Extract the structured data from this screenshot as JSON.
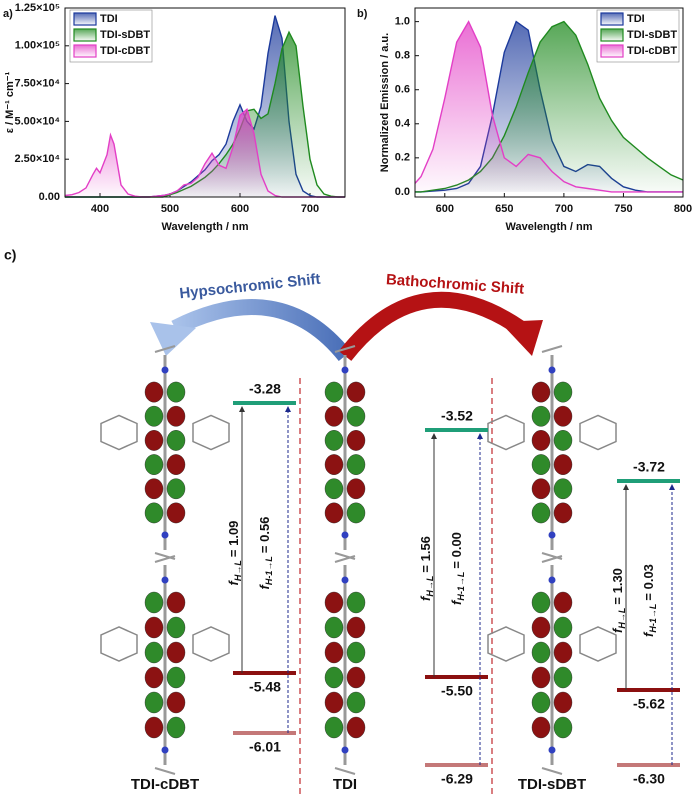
{
  "chart_data": [
    {
      "type": "line",
      "label": "a)",
      "xlabel": "Wavelength / nm",
      "ylabel": "ε / M⁻¹ cm⁻¹",
      "xlim": [
        350,
        750
      ],
      "xticks": [
        400,
        500,
        600,
        700
      ],
      "ylim": [
        0,
        125000
      ],
      "yticks": [
        {
          "value": 0,
          "label": "0.00"
        },
        {
          "value": 25000,
          "label": "2.50×10⁴"
        },
        {
          "value": 50000,
          "label": "5.00×10⁴"
        },
        {
          "value": 75000,
          "label": "7.50×10⁴"
        },
        {
          "value": 100000,
          "label": "1.00×10⁵"
        },
        {
          "value": 125000,
          "label": "1.25×10⁵"
        }
      ],
      "legend": "upper left",
      "x": [
        350,
        360,
        370,
        380,
        390,
        395,
        400,
        410,
        415,
        420,
        430,
        440,
        450,
        460,
        470,
        480,
        490,
        500,
        510,
        520,
        530,
        540,
        550,
        560,
        570,
        580,
        590,
        600,
        610,
        620,
        630,
        640,
        650,
        660,
        670,
        680,
        690,
        700,
        710,
        720,
        730,
        740,
        750
      ],
      "series": [
        {
          "name": "TDI",
          "color": "#1c3a9c",
          "values": [
            0,
            0,
            0,
            0,
            0,
            0,
            0,
            0,
            0,
            0,
            0,
            0,
            0,
            0,
            0,
            500,
            1000,
            2000,
            4000,
            7000,
            10000,
            14000,
            18000,
            24000,
            28000,
            35000,
            50000,
            61000,
            50000,
            45000,
            60000,
            95000,
            120000,
            105000,
            50000,
            15000,
            4000,
            1000,
            0,
            0,
            0,
            0,
            0
          ]
        },
        {
          "name": "TDI-sDBT",
          "color": "#1f8a1f",
          "values": [
            0,
            0,
            0,
            0,
            0,
            0,
            0,
            0,
            0,
            0,
            0,
            0,
            0,
            0,
            0,
            0,
            0,
            1500,
            3000,
            5000,
            7000,
            10000,
            13000,
            17000,
            22000,
            28000,
            35000,
            45000,
            57000,
            58000,
            52000,
            55000,
            75000,
            98000,
            109000,
            100000,
            60000,
            25000,
            8000,
            2000,
            500,
            0,
            0
          ]
        },
        {
          "name": "TDI-cDBT",
          "color": "#e33fc6",
          "values": [
            1000,
            1500,
            3000,
            6000,
            15000,
            19000,
            16000,
            28000,
            41000,
            35000,
            8000,
            2000,
            500,
            0,
            0,
            500,
            1000,
            2000,
            4000,
            8000,
            9000,
            13000,
            22000,
            29000,
            21000,
            19000,
            33000,
            54000,
            58000,
            42000,
            15000,
            4000,
            1000,
            0,
            0,
            0,
            0,
            0,
            0,
            0,
            0,
            0,
            0
          ]
        }
      ]
    },
    {
      "type": "line",
      "label": "b)",
      "xlabel": "Wavelength / nm",
      "ylabel": "Normalized Emission / a.u.",
      "xlim": [
        575,
        800
      ],
      "xticks": [
        600,
        650,
        700,
        750,
        800
      ],
      "ylim": [
        -0.03,
        1.08
      ],
      "yticks": [
        {
          "value": 0,
          "label": "0.0"
        },
        0.2,
        0.4,
        0.6,
        0.8,
        {
          "value": 1,
          "label": "1.0"
        }
      ],
      "legend": "upper right",
      "x": [
        575,
        580,
        590,
        600,
        610,
        620,
        630,
        640,
        650,
        660,
        670,
        680,
        690,
        700,
        710,
        720,
        730,
        740,
        750,
        760,
        770,
        780,
        790,
        800
      ],
      "series": [
        {
          "name": "TDI",
          "color": "#1c3a9c",
          "values": [
            0,
            0,
            0.005,
            0.01,
            0.02,
            0.05,
            0.15,
            0.45,
            0.82,
            1.0,
            0.95,
            0.6,
            0.3,
            0.15,
            0.12,
            0.16,
            0.15,
            0.08,
            0.03,
            0.01,
            0,
            0,
            0,
            0
          ]
        },
        {
          "name": "TDI-sDBT",
          "color": "#1f8a1f",
          "values": [
            0,
            0,
            0.01,
            0.02,
            0.04,
            0.07,
            0.12,
            0.2,
            0.33,
            0.5,
            0.7,
            0.88,
            0.97,
            1.0,
            0.92,
            0.75,
            0.55,
            0.42,
            0.32,
            0.26,
            0.2,
            0.15,
            0.1,
            0.07
          ]
        },
        {
          "name": "TDI-cDBT",
          "color": "#e33fc6",
          "values": [
            0.05,
            0.09,
            0.25,
            0.55,
            0.88,
            1.0,
            0.85,
            0.45,
            0.2,
            0.15,
            0.22,
            0.2,
            0.12,
            0.06,
            0.03,
            0.02,
            0.01,
            0,
            0,
            0,
            0,
            0,
            0,
            0
          ]
        }
      ]
    }
  ],
  "diagram": {
    "label": "c)",
    "hypsochromic": "Hypsochromic Shift",
    "bathochromic": "Bathochromic Shift",
    "molecules": [
      {
        "name": "TDI-cDBT",
        "lumo": "-3.28",
        "homo": "-5.48",
        "homo_1": "-6.01",
        "f_h": {
          "symbol": "f",
          "sub": "H→L",
          "text": "= 1.09"
        },
        "f_h1": {
          "symbol": "f",
          "sub": "H-1→L",
          "text": "= 0.56"
        }
      },
      {
        "name": "TDI",
        "lumo": "-3.52",
        "homo": "-5.50",
        "homo_1": "-6.29",
        "f_h": {
          "symbol": "f",
          "sub": "H→L",
          "text": "= 1.56"
        },
        "f_h1": {
          "symbol": "f",
          "sub": "H-1→L",
          "text": "= 0.00"
        }
      },
      {
        "name": "TDI-sDBT",
        "lumo": "-3.72",
        "homo": "-5.62",
        "homo_1": "-6.30",
        "f_h": {
          "symbol": "f",
          "sub": "H→L",
          "text": "= 1.30"
        },
        "f_h1": {
          "symbol": "f",
          "sub": "H-1→L",
          "text": "= 0.03"
        }
      }
    ]
  }
}
